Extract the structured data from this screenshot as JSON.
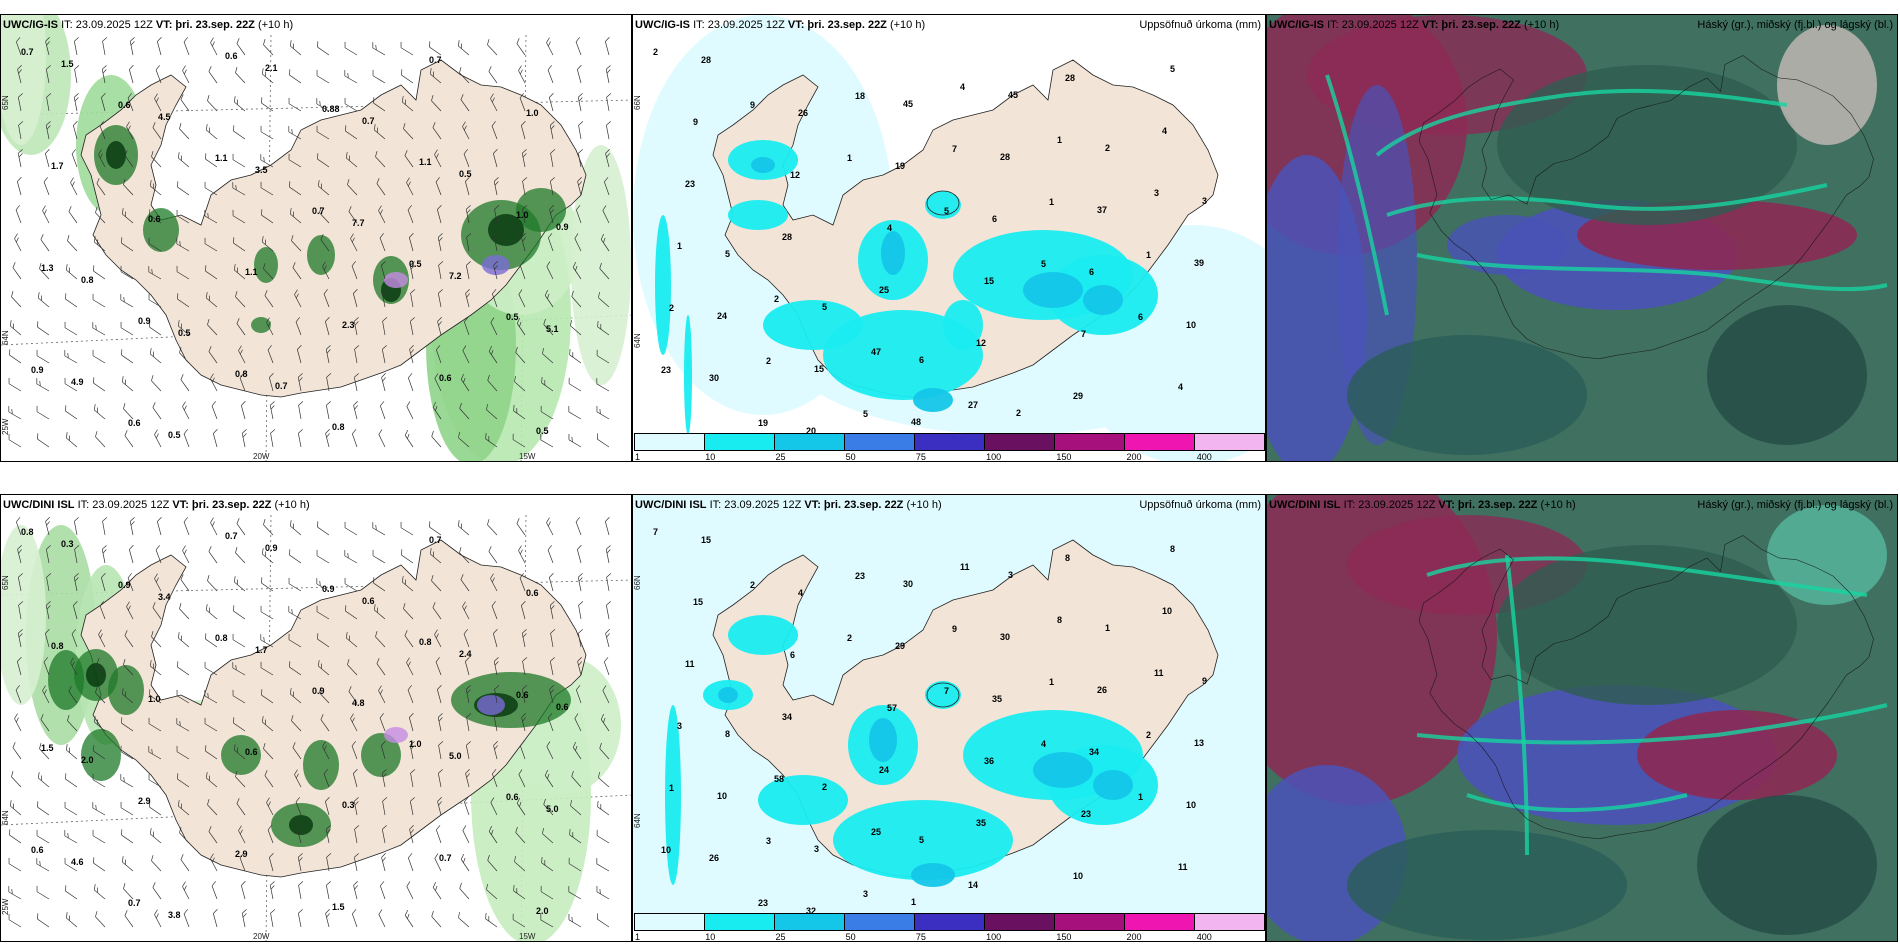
{
  "colors": {
    "land": "#f2e4d6",
    "precip_scale": [
      "#e0fbff",
      "#19ecf0",
      "#14c6e8",
      "#3b7de6",
      "#3b2fc2",
      "#6a1060",
      "#a5107c",
      "#ee15b0",
      "#f3b5f0"
    ],
    "cloud_high": "#8c2a55",
    "cloud_mid": "#3f7060",
    "cloud_low": "#4a52b8",
    "wind_green": "#2f9a3a"
  },
  "rows": [
    {
      "panels": [
        {
          "model": "UWC/IG-IS",
          "it": "IT: 23.09.2025 12Z",
          "vt_label": "VT:",
          "vt_value": "þri. 23.sep. 22Z",
          "lead": "(+10 h)",
          "right_title": "",
          "values": [
            "0.7",
            "0.6",
            "1.1",
            "0.7",
            "0.5",
            "0.5",
            "0.9",
            "0.6",
            "0.6",
            "0.88",
            "1.1",
            "1.0",
            "1.3",
            "0.9",
            "0.8",
            "0.8",
            "0.7",
            "1.0",
            "1.7",
            "0.6",
            "1.1",
            "2.3",
            "0.6",
            "0.5",
            "1.5",
            "4.5",
            "3.5",
            "7.7",
            "7.2",
            "5.1",
            "4.9",
            "0.5",
            "2.1",
            "0.7",
            "0.5",
            "0.9",
            "0.8",
            "0.5",
            "0.7"
          ]
        },
        {
          "model": "UWC/IG-IS",
          "it": "IT: 23.09.2025 12Z",
          "vt_label": "VT:",
          "vt_value": "þri. 23.sep. 22Z",
          "lead": "(+10 h)",
          "right_title": "Uppsöfnuð úrkoma (mm)",
          "values": [
            "2",
            "9",
            "1",
            "5",
            "5",
            "6",
            "23",
            "19",
            "18",
            "7",
            "1",
            "1",
            "2",
            "2",
            "5",
            "4",
            "1",
            "3",
            "1",
            "2",
            "47",
            "27",
            "28",
            "4",
            "23",
            "28",
            "25",
            "12",
            "29",
            "5",
            "9",
            "12",
            "4",
            "15",
            "7",
            "4",
            "28",
            "26",
            "19",
            "6",
            "6",
            "10",
            "30",
            "20",
            "45",
            "28",
            "37",
            "39",
            "24",
            "15",
            "48",
            "45",
            "2",
            "3",
            "5",
            "5",
            "6",
            "2"
          ]
        },
        {
          "model": "UWC/IG-IS",
          "it": "IT: 23.09.2025 12Z",
          "vt_label": "VT:",
          "vt_value": "þri. 23.sep. 22Z",
          "lead": "(+10 h)",
          "right_title": "Háský (gr.), miðský (fj.bl.) og lágský (bl.)",
          "values": []
        }
      ]
    },
    {
      "panels": [
        {
          "model": "UWC/DINI ISL",
          "it": "IT: 23.09.2025 12Z",
          "vt_label": "VT:",
          "vt_value": "þri. 23.sep. 22Z",
          "lead": "(+10 h)",
          "right_title": "",
          "values": [
            "0.8",
            "0.9",
            "0.8",
            "0.9",
            "1.0",
            "0.6",
            "0.6",
            "0.7",
            "0.7",
            "0.9",
            "0.8",
            "0.6",
            "1.5",
            "2.9",
            "2.9",
            "1.5",
            "0.7",
            "0.6",
            "0.8",
            "1.0",
            "0.6",
            "0.3",
            "0.7",
            "2.0",
            "0.3",
            "3.4",
            "1.7",
            "4.8",
            "5.0",
            "5.0",
            "4.6",
            "3.8",
            "0.9",
            "0.6",
            "2.4",
            "0.6",
            "2.0"
          ]
        },
        {
          "model": "UWC/DINI ISL",
          "it": "IT: 23.09.2025 12Z",
          "vt_label": "VT:",
          "vt_value": "þri. 23.sep. 22Z",
          "lead": "(+10 h)",
          "right_title": "Uppsöfnuð úrkoma (mm)",
          "values": [
            "7",
            "2",
            "2",
            "7",
            "4",
            "1",
            "10",
            "23",
            "23",
            "9",
            "1",
            "2",
            "1",
            "3",
            "3",
            "11",
            "8",
            "11",
            "3",
            "58",
            "25",
            "14",
            "8",
            "10",
            "11",
            "34",
            "24",
            "35",
            "10",
            "8",
            "15",
            "6",
            "57",
            "36",
            "23",
            "11",
            "15",
            "4",
            "29",
            "35",
            "34",
            "10",
            "26",
            "32",
            "30",
            "30",
            "26",
            "13",
            "10",
            "3",
            "1",
            "3",
            "1",
            "9",
            "8",
            "2",
            "5"
          ]
        },
        {
          "model": "UWC/DINI ISL",
          "it": "IT: 23.09.2025 12Z",
          "vt_label": "VT:",
          "vt_value": "þri. 23.sep. 22Z",
          "lead": "(+10 h)",
          "right_title": "Háský (gr.), miðský (fj.bl.) og lágský (bl.)",
          "values": []
        }
      ]
    }
  ],
  "legend": {
    "ticks": [
      "1",
      "10",
      "25",
      "50",
      "75",
      "100",
      "150",
      "200",
      "400"
    ]
  },
  "axis": {
    "lon_left": "20W",
    "lon_right": "15W",
    "lat_top": "65N",
    "lat_mid": "64N",
    "lat_bottom": "25W",
    "lat_precip_top": "66N",
    "lat_precip_mid": "64N"
  }
}
